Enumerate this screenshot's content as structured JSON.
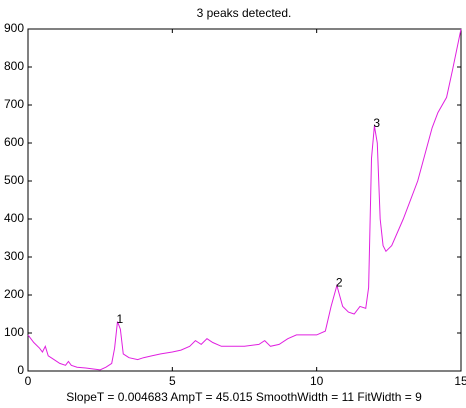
{
  "chart_data": {
    "type": "line",
    "title": "3 peaks detected.",
    "xlabel": "SlopeT = 0.004683    AmpT = 45.015    SmoothWidth = 11    FitWidth = 9",
    "x": [
      0,
      0.2,
      0.4,
      0.5,
      0.6,
      0.7,
      0.9,
      1.1,
      1.3,
      1.4,
      1.5,
      1.7,
      2.0,
      2.3,
      2.5,
      2.7,
      2.9,
      3.0,
      3.1,
      3.2,
      3.3,
      3.5,
      3.8,
      4.0,
      4.3,
      4.6,
      5.0,
      5.3,
      5.6,
      5.8,
      6.0,
      6.2,
      6.4,
      6.7,
      7.0,
      7.5,
      8.0,
      8.2,
      8.4,
      8.7,
      9.0,
      9.3,
      9.6,
      10.0,
      10.3,
      10.5,
      10.7,
      10.9,
      11.1,
      11.3,
      11.5,
      11.7,
      11.8,
      11.9,
      12.0,
      12.1,
      12.2,
      12.3,
      12.4,
      12.6,
      13.0,
      13.5,
      14.0,
      14.2,
      14.5,
      14.7,
      15.0
    ],
    "series": [
      {
        "color": "#e020e0",
        "values": [
          95,
          75,
          60,
          50,
          65,
          40,
          30,
          20,
          15,
          25,
          15,
          10,
          8,
          5,
          3,
          10,
          20,
          60,
          130,
          110,
          45,
          35,
          30,
          35,
          40,
          45,
          50,
          55,
          65,
          80,
          70,
          85,
          75,
          65,
          65,
          65,
          70,
          80,
          65,
          70,
          85,
          95,
          95,
          95,
          105,
          170,
          225,
          170,
          155,
          150,
          170,
          165,
          220,
          560,
          645,
          600,
          400,
          330,
          315,
          330,
          400,
          500,
          640,
          680,
          720,
          790,
          900
        ]
      }
    ],
    "annotations": [
      {
        "text": "1",
        "x": 3.1,
        "y": 130
      },
      {
        "text": "2",
        "x": 10.7,
        "y": 225
      },
      {
        "text": "3",
        "x": 12.0,
        "y": 645
      }
    ],
    "xlim": [
      0,
      15
    ],
    "xticks": [
      0,
      5,
      10,
      15
    ],
    "ylim": [
      0,
      900
    ],
    "yticks": [
      0,
      100,
      200,
      300,
      400,
      500,
      600,
      700,
      800,
      900
    ],
    "grid": false
  }
}
